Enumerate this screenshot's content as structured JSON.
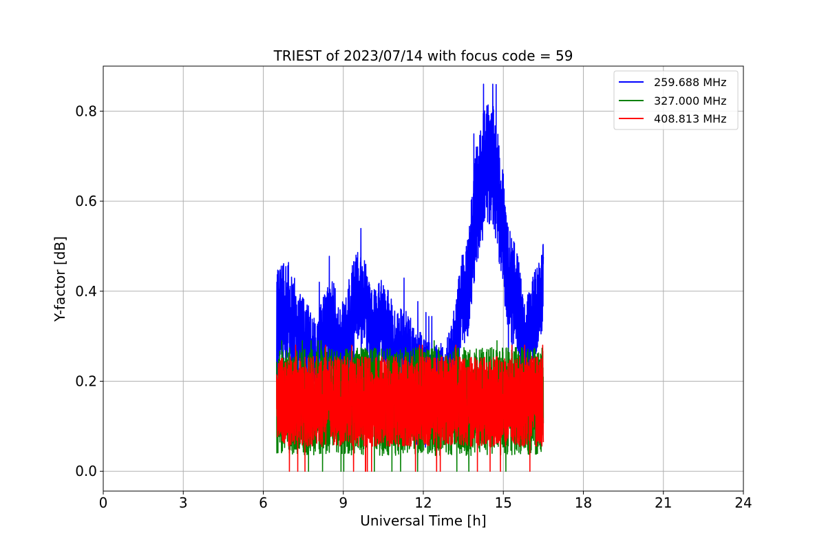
{
  "chart_data": {
    "type": "line",
    "title": "TRIEST of 2023/07/14 with focus code = 59",
    "xlabel": "Universal Time [h]",
    "ylabel": "Y-factor [dB]",
    "xlim": [
      0,
      24
    ],
    "ylim": [
      -0.044,
      0.9
    ],
    "xticks": [
      0,
      3,
      6,
      9,
      12,
      15,
      18,
      21,
      24
    ],
    "yticks": [
      0.0,
      0.2,
      0.4,
      0.6,
      0.8
    ],
    "grid": true,
    "legend_position": "top-right",
    "series": [
      {
        "name": "259.688 MHz",
        "color": "#0000ff",
        "x": [
          6.5,
          6.7,
          7.0,
          7.3,
          7.7,
          8.0,
          8.3,
          8.6,
          8.9,
          9.2,
          9.5,
          9.8,
          10.1,
          10.4,
          10.7,
          11.0,
          11.3,
          11.6,
          11.9,
          12.2,
          12.5,
          12.8,
          13.1,
          13.4,
          13.7,
          14.0,
          14.3,
          14.6,
          14.9,
          15.2,
          15.5,
          15.8,
          16.1,
          16.5
        ],
        "y": [
          0.32,
          0.36,
          0.35,
          0.3,
          0.27,
          0.24,
          0.3,
          0.33,
          0.26,
          0.31,
          0.39,
          0.37,
          0.3,
          0.33,
          0.3,
          0.26,
          0.27,
          0.23,
          0.21,
          0.2,
          0.2,
          0.19,
          0.24,
          0.37,
          0.42,
          0.6,
          0.67,
          0.69,
          0.58,
          0.42,
          0.38,
          0.27,
          0.33,
          0.41
        ],
        "spread": [
          0.12,
          0.12,
          0.12,
          0.1,
          0.1,
          0.1,
          0.1,
          0.1,
          0.1,
          0.12,
          0.1,
          0.1,
          0.1,
          0.1,
          0.1,
          0.1,
          0.1,
          0.1,
          0.1,
          0.09,
          0.09,
          0.09,
          0.1,
          0.1,
          0.12,
          0.14,
          0.14,
          0.14,
          0.14,
          0.12,
          0.12,
          0.1,
          0.1,
          0.1
        ],
        "peak": 0.86,
        "min": 0.0
      },
      {
        "name": "327.000 MHz",
        "color": "#008000",
        "x_range": [
          6.5,
          16.5
        ],
        "mean": 0.155,
        "spread": 0.12,
        "peak": 0.29,
        "min": 0.0
      },
      {
        "name": "408.813 MHz",
        "color": "#ff0000",
        "x_range": [
          6.5,
          16.5
        ],
        "mean": 0.155,
        "spread": 0.1,
        "peak": 0.28,
        "min": 0.0
      }
    ]
  }
}
